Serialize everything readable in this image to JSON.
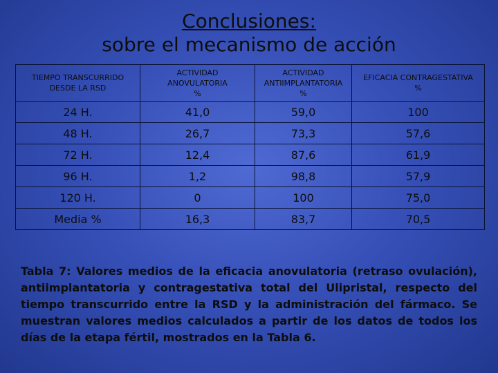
{
  "title": {
    "line1": "Conclusiones:",
    "line2": "sobre el mecanismo de acción"
  },
  "table": {
    "headers": [
      {
        "line1": "TIEMPO TRANSCURRIDO",
        "line2": "DESDE LA RSD",
        "line3": ""
      },
      {
        "line1": "ACTIVIDAD",
        "line2": "ANOVULATORIA",
        "line3": "%"
      },
      {
        "line1": "ACTIVIDAD",
        "line2": "ANTIIMPLANTATORIA",
        "line3": "%"
      },
      {
        "line1": "EFICACIA CONTRAGESTATIVA",
        "line2": "%",
        "line3": ""
      }
    ],
    "rows": [
      [
        "24 H.",
        "41,0",
        "59,0",
        "100"
      ],
      [
        "48 H.",
        "26,7",
        "73,3",
        "57,6"
      ],
      [
        "72 H.",
        "12,4",
        "87,6",
        "61,9"
      ],
      [
        "96 H.",
        "1,2",
        "98,8",
        "57,9"
      ],
      [
        "120 H.",
        "0",
        "100",
        "75,0"
      ],
      [
        "Media %",
        "16,3",
        "83,7",
        "70,5"
      ]
    ]
  },
  "caption": "Tabla 7: Valores medios de la eficacia anovulatoria (retraso ovulación), antiimplantatoria y contragestativa total del Ulipristal, respecto del tiempo transcurrido entre la RSD y la administración del fármaco. Se muestran valores medios calculados a partir de los datos de todos los días de la etapa fértil, mostrados en la Tabla 6."
}
